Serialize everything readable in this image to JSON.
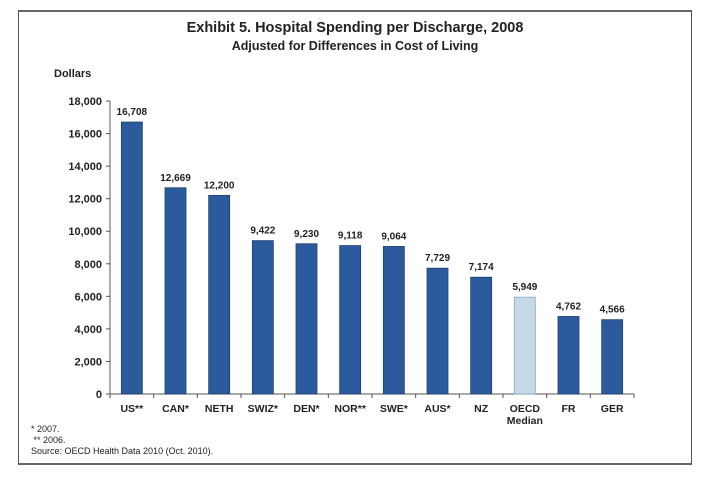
{
  "chart_data": {
    "type": "bar",
    "title": "Exhibit 5. Hospital Spending per Discharge, 2008",
    "subtitle": "Adjusted for Differences in Cost of Living",
    "ylabel": "Dollars",
    "xlabel": "",
    "ylim": [
      0,
      18000
    ],
    "yticks": [
      0,
      2000,
      4000,
      6000,
      8000,
      10000,
      12000,
      14000,
      16000,
      18000
    ],
    "ytick_labels": [
      "0",
      "2,000",
      "4,000",
      "6,000",
      "8,000",
      "10,000",
      "12,000",
      "14,000",
      "16,000",
      "18,000"
    ],
    "grid": false,
    "categories": [
      "US**",
      "CAN*",
      "NETH",
      "SWIZ*",
      "DEN*",
      "NOR**",
      "SWE*",
      "AUS*",
      "NZ",
      "OECD Median",
      "FR",
      "GER"
    ],
    "category_lines": [
      [
        "US**"
      ],
      [
        "CAN*"
      ],
      [
        "NETH"
      ],
      [
        "SWIZ*"
      ],
      [
        "DEN*"
      ],
      [
        "NOR**"
      ],
      [
        "SWE*"
      ],
      [
        "AUS*"
      ],
      [
        "NZ"
      ],
      [
        "OECD",
        "Median"
      ],
      [
        "FR"
      ],
      [
        "GER"
      ]
    ],
    "values": [
      16708,
      12669,
      12200,
      9422,
      9230,
      9118,
      9064,
      7729,
      7174,
      5949,
      4762,
      4566
    ],
    "value_labels": [
      "16,708",
      "12,669",
      "12,200",
      "9,422",
      "9,230",
      "9,118",
      "9,064",
      "7,729",
      "7,174",
      "5,949",
      "4,762",
      "4,566"
    ],
    "highlight_category": "OECD Median",
    "colors": {
      "bar": "#2B5B9C",
      "bar_stroke": "#1E3F6E",
      "highlight": "#C6D9E8",
      "highlight_stroke": "#8FA8BE",
      "axis": "#555555"
    }
  },
  "footnotes": {
    "note1": "* 2007.",
    "note2": " ** 2006.",
    "source": "Source: OECD Health Data 2010 (Oct. 2010)."
  }
}
